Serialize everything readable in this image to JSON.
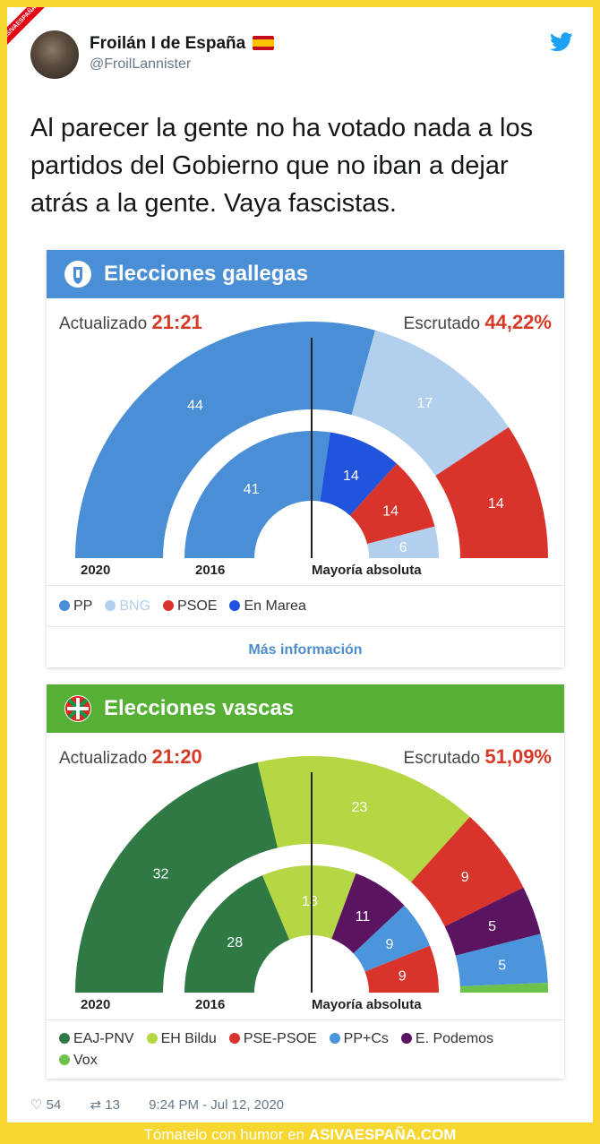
{
  "watermark": "ASIVAESPAÑA.COM",
  "tweet": {
    "name": "Froilán I de España",
    "handle": "@FroilLannister",
    "text": "Al parecer la gente no ha votado nada a los partidos del Gobierno que no iban a dejar atrás a la gente.  Vaya fascistas.",
    "likes": "54",
    "retweets": "13",
    "timestamp": "9:24 PM - Jul 12, 2020"
  },
  "galicia": {
    "title": "Elecciones gallegas",
    "updated_label": "Actualizado",
    "updated_time": "21:21",
    "count_label": "Escrutado",
    "count_value": "44,22%",
    "label_2020": "2020",
    "label_2016": "2016",
    "majority_label": "Mayoría absoluta",
    "more_label": "Más información",
    "legend": [
      {
        "name": "PP",
        "color": "#4a8fd6"
      },
      {
        "name": "BNG",
        "color": "#b3cfee"
      },
      {
        "name": "PSOE",
        "color": "#d9342b"
      },
      {
        "name": "En Marea",
        "color": "#2154dd"
      }
    ]
  },
  "euskadi": {
    "title": "Elecciones vascas",
    "updated_label": "Actualizado",
    "updated_time": "21:20",
    "count_label": "Escrutado",
    "count_value": "51,09%",
    "label_2020": "2020",
    "label_2016": "2016",
    "majority_label": "Mayoría absoluta",
    "legend": [
      {
        "name": "EAJ-PNV",
        "color": "#2f7a44"
      },
      {
        "name": "EH Bildu",
        "color": "#b6d744"
      },
      {
        "name": "PSE-PSOE",
        "color": "#d9342b"
      },
      {
        "name": "PP+Cs",
        "color": "#4a95db"
      },
      {
        "name": "E. Podemos",
        "color": "#5a1460"
      },
      {
        "name": "Vox",
        "color": "#6cc24a"
      }
    ]
  },
  "chart_data": [
    {
      "type": "pie",
      "title": "Elecciones gallegas",
      "total_seats": 75,
      "series": [
        {
          "name": "2020",
          "categories": [
            "PP",
            "BNG",
            "PSOE"
          ],
          "values": [
            44,
            17,
            14
          ]
        },
        {
          "name": "2016",
          "categories": [
            "PP",
            "En Marea",
            "PSOE",
            "BNG"
          ],
          "values": [
            41,
            14,
            14,
            6
          ]
        }
      ]
    },
    {
      "type": "pie",
      "title": "Elecciones vascas",
      "total_seats": 75,
      "series": [
        {
          "name": "2020",
          "categories": [
            "EAJ-PNV",
            "EH Bildu",
            "PSE-PSOE",
            "E. Podemos",
            "PP+Cs",
            "Vox"
          ],
          "values": [
            32,
            23,
            9,
            5,
            5,
            1
          ]
        },
        {
          "name": "2016",
          "categories": [
            "EAJ-PNV",
            "EH Bildu",
            "E. Podemos",
            "PP+Cs",
            "PSE-PSOE"
          ],
          "values": [
            28,
            18,
            11,
            9,
            9
          ]
        }
      ]
    }
  ],
  "bottom_bar": {
    "prefix": "Tómatelo con humor en",
    "site": "ASIVAESPAÑA.COM"
  }
}
